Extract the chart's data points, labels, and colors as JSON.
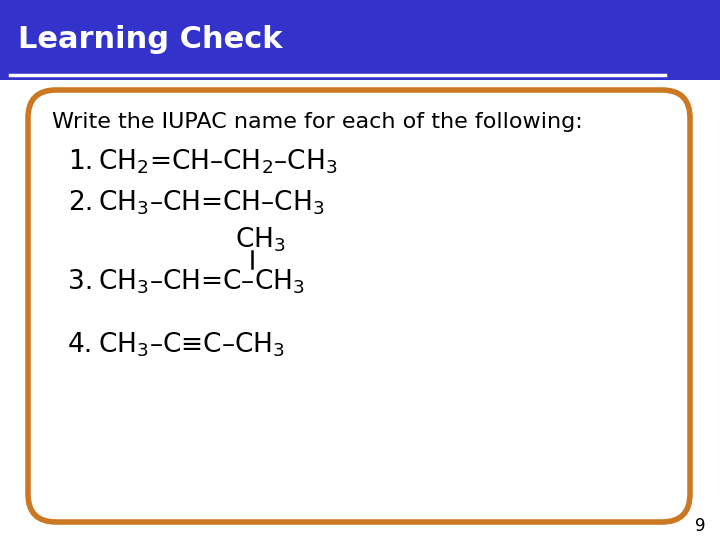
{
  "title": "Learning Check",
  "title_bg_color": "#3333CC",
  "title_text_color": "#FFFFFF",
  "body_bg_color": "#FFFFFF",
  "border_color": "#CC7722",
  "page_number": "9",
  "intro_text": "Write the IUPAC name for each of the following:",
  "line1_label": "1.",
  "line1_formula": "CH$_2$=CH–CH$_2$–CH$_3$",
  "line2_label": "2.",
  "line2_formula": "CH$_3$–CH=CH–CH$_3$",
  "line3_label": "3.",
  "line3_formula": "CH$_3$–CH=C–CH$_3$",
  "line3_branch": "CH$_3$",
  "line4_label": "4.",
  "line4_formula": "CH$_3$–C≡C–CH$_3$",
  "font_size_formula": 19,
  "font_size_label": 19,
  "font_size_intro": 16,
  "font_size_title": 22,
  "title_bar_height": 80
}
